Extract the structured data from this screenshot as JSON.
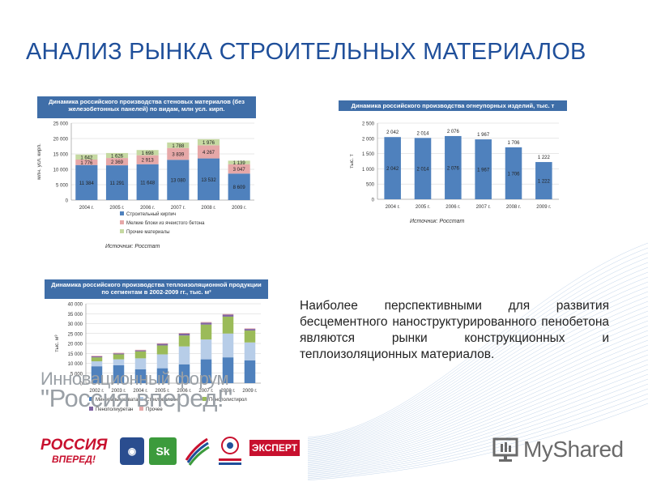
{
  "slide": {
    "title": "АНАЛИЗ РЫНКА СТРОИТЕЛЬНЫХ МАТЕРИАЛОВ",
    "body_text": "Наиболее перспективными для развития бесцементного наноструктурированного пенобетона являются рынки конструкционных и теплоизоляционных материалов.",
    "forum_line1": "Инновационный форум",
    "forum_line2": "\"Россия вперед!\"",
    "logos": {
      "russia_line1": "РОССИЯ",
      "russia_line2": "ВПЕРЕД!",
      "expert": "ЭКСПЕРТ",
      "sk": "Sk",
      "myshared": "MyShared"
    }
  },
  "colors": {
    "title": "#1f4f9a",
    "header_bg": "#3f6ea8",
    "bar_blue": "#4f81bd",
    "bar_red": "#e6a8a8",
    "bar_green": "#c6d9a2",
    "bar_purple": "#8064a2",
    "bar_lightblue": "#b7cde8",
    "bar_lightgreen": "#9bbb59"
  },
  "chart_data": [
    {
      "type": "bar",
      "stacked": true,
      "title": "Динамика российского производства стеновых материалов (без железобетонных панелей) по видам, млн усл. кирп.",
      "ylabel": "млн. усл. кирп.",
      "ylim": [
        0,
        25000
      ],
      "yticks": [
        0,
        5000,
        10000,
        15000,
        20000,
        25000
      ],
      "ytick_labels": [
        "0",
        "5 000",
        "10 000",
        "15 000",
        "20 000",
        "25 000"
      ],
      "categories": [
        "2004 г.",
        "2005 г.",
        "2006 г.",
        "2007 г.",
        "2008 г.",
        "2009 г."
      ],
      "series": [
        {
          "name": "Строительный кирпич",
          "values": [
            11384,
            11291,
            11648,
            13080,
            13532,
            8609
          ],
          "labels": [
            "11 384",
            "11 291",
            "11 648",
            "13 080",
            "13 532",
            "8 609"
          ]
        },
        {
          "name": "Мелкие блоки из ячеистого бетона",
          "values": [
            1776,
            2369,
            2913,
            3839,
            4267,
            3047
          ],
          "labels": [
            "1 776",
            "2 369",
            "2 913",
            "3 839",
            "4 267",
            "3 047"
          ]
        },
        {
          "name": "Прочие материалы",
          "values": [
            1642,
            1626,
            1698,
            1788,
            1976,
            1139
          ],
          "labels": [
            "1 642",
            "1 626",
            "1 698",
            "1 788",
            "1 976",
            "1 139"
          ]
        }
      ],
      "legend": "bottom",
      "source": "Источник: Росстат"
    },
    {
      "type": "bar",
      "title": "Динамика российского производства огнеупорных изделий, тыс. т",
      "ylabel": "тыс. т",
      "ylim": [
        0,
        2500
      ],
      "yticks": [
        0,
        500,
        1000,
        1500,
        2000,
        2500
      ],
      "ytick_labels": [
        "0",
        "500",
        "1 000",
        "1 500",
        "2 000",
        "2 500"
      ],
      "categories": [
        "2004 г.",
        "2005 г.",
        "2006 г.",
        "2007 г.",
        "2008 г.",
        "2009 г."
      ],
      "values": [
        2042,
        2014,
        2076,
        1967,
        1706,
        1222
      ],
      "value_labels": [
        "2 042",
        "2 014",
        "2 076",
        "1 967",
        "1 706",
        "1 222"
      ],
      "source": "Источник: Росстат"
    },
    {
      "type": "bar",
      "stacked": true,
      "title": "Динамика российского производства теплоизоляционной продукции по сегментам в 2002-2009 гг., тыс. м³",
      "ylabel": "тыс. м³",
      "ylim": [
        0,
        40000
      ],
      "yticks": [
        0,
        5000,
        10000,
        15000,
        20000,
        25000,
        30000,
        35000,
        40000
      ],
      "ytick_labels": [
        "0",
        "5 000",
        "10 000",
        "15 000",
        "20 000",
        "25 000",
        "30 000",
        "35 000",
        "40 000"
      ],
      "categories": [
        "2002 г.",
        "2003 г.",
        "2004 г.",
        "2005 г.",
        "2006 г.",
        "2007 г.",
        "2008 г.",
        "2009 г."
      ],
      "series": [
        {
          "name": "Минеральная вата",
          "values": [
            8500,
            9000,
            7000,
            7500,
            9500,
            12000,
            13000,
            11500
          ]
        },
        {
          "name": "Стекловолокно",
          "values": [
            2500,
            3000,
            5500,
            7000,
            9000,
            10000,
            12000,
            9000
          ]
        },
        {
          "name": "Пенополистирол",
          "values": [
            2000,
            2500,
            3500,
            4500,
            5500,
            7500,
            8500,
            6000
          ]
        },
        {
          "name": "Пенополиуретан",
          "values": [
            500,
            500,
            500,
            800,
            1000,
            1000,
            1000,
            800
          ]
        },
        {
          "name": "Прочее",
          "values": [
            300,
            300,
            300,
            300,
            300,
            300,
            300,
            300
          ]
        }
      ],
      "legend": "bottom"
    }
  ]
}
